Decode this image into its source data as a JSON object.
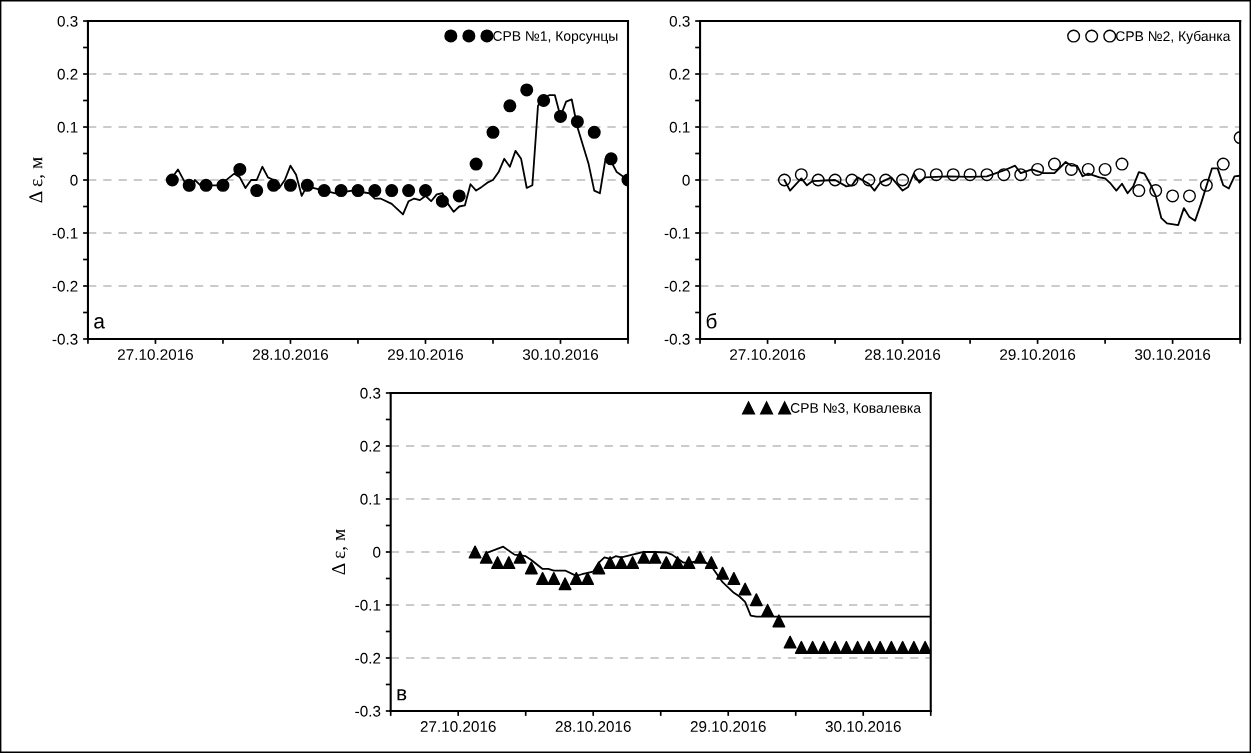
{
  "chart_data": [
    {
      "type": "scatter",
      "ylabel": "Δ ε, м",
      "annotations": [
        "а"
      ],
      "legend": "top right",
      "grid": "y",
      "marker": "circle",
      "xlim": [
        "2016-10-27T00:00",
        "2016-10-31T00:00"
      ],
      "xticks": [
        {
          "value": "2016-10-27T00:00",
          "label": null
        },
        {
          "value": "2016-10-27T12:00",
          "label": "27.10.2016"
        },
        {
          "value": "2016-10-28T00:00",
          "label": null
        },
        {
          "value": "2016-10-28T12:00",
          "label": "28.10.2016"
        },
        {
          "value": "2016-10-29T00:00",
          "label": null
        },
        {
          "value": "2016-10-29T12:00",
          "label": "29.10.2016"
        },
        {
          "value": "2016-10-30T00:00",
          "label": null
        },
        {
          "value": "2016-10-30T12:00",
          "label": "30.10.2016"
        },
        {
          "value": "2016-10-31T00:00",
          "label": null
        }
      ],
      "ylim": [
        -0.3,
        0.3
      ],
      "yticks": [
        -0.3,
        {
          "value": -0.25,
          "label": null
        },
        -0.2,
        {
          "value": -0.15,
          "label": null
        },
        -0.1,
        {
          "value": -0.05,
          "label": null
        },
        0,
        {
          "value": 0.05,
          "label": null
        },
        0.1,
        {
          "value": 0.15,
          "label": null
        },
        0.2,
        {
          "value": 0.25,
          "label": null
        },
        0.3
      ],
      "series": [
        {
          "type": "line",
          "color": "#000000",
          "marker": "none",
          "x": [
            "2016-10-27T15:00",
            "2016-10-27T16:00",
            "2016-10-27T18:00",
            "2016-10-27T19:00",
            "2016-10-27T20:00",
            "2016-10-27T23:00",
            "2016-10-28T00:00",
            "2016-10-28T02:00",
            "2016-10-28T03:00",
            "2016-10-28T04:00",
            "2016-10-28T05:00",
            "2016-10-28T06:00",
            "2016-10-28T07:00",
            "2016-10-28T08:00",
            "2016-10-28T09:00",
            "2016-10-28T10:00",
            "2016-10-28T11:00",
            "2016-10-28T12:00",
            "2016-10-28T13:00",
            "2016-10-28T14:00",
            "2016-10-28T15:00",
            "2016-10-28T16:00",
            "2016-10-28T18:00",
            "2016-10-28T20:00",
            "2016-10-28T23:00",
            "2016-10-29T02:00",
            "2016-10-29T03:00",
            "2016-10-29T04:00",
            "2016-10-29T06:00",
            "2016-10-29T08:00",
            "2016-10-29T09:00",
            "2016-10-29T10:00",
            "2016-10-29T11:00",
            "2016-10-29T12:00",
            "2016-10-29T13:00",
            "2016-10-29T14:00",
            "2016-10-29T15:00",
            "2016-10-29T16:00",
            "2016-10-29T17:00",
            "2016-10-29T18:00",
            "2016-10-29T19:00",
            "2016-10-29T20:00",
            "2016-10-29T21:00",
            "2016-10-29T22:00",
            "2016-10-29T23:00",
            "2016-10-30T00:00",
            "2016-10-30T01:00",
            "2016-10-30T02:00",
            "2016-10-30T03:00",
            "2016-10-30T04:00",
            "2016-10-30T05:00",
            "2016-10-30T06:00",
            "2016-10-30T07:00",
            "2016-10-30T08:00",
            "2016-10-30T09:00",
            "2016-10-30T10:00",
            "2016-10-30T11:00",
            "2016-10-30T12:00",
            "2016-10-30T13:00",
            "2016-10-30T14:00",
            "2016-10-30T15:00",
            "2016-10-30T17:00",
            "2016-10-30T18:00",
            "2016-10-30T19:00",
            "2016-10-30T20:00",
            "2016-10-30T21:00",
            "2016-10-30T22:00",
            "2016-10-31T00:00"
          ],
          "values": [
            0.005,
            0.02,
            -0.02,
            0,
            -0.01,
            -0.01,
            -0.005,
            0.012,
            0.005,
            -0.015,
            0,
            0,
            0.025,
            0.005,
            0,
            -0.015,
            0,
            0.027,
            0.01,
            -0.03,
            -0.01,
            -0.015,
            -0.02,
            -0.025,
            -0.02,
            -0.025,
            -0.035,
            -0.035,
            -0.045,
            -0.065,
            -0.04,
            -0.035,
            -0.038,
            -0.03,
            -0.04,
            -0.027,
            -0.025,
            -0.045,
            -0.06,
            -0.05,
            -0.048,
            -0.008,
            -0.02,
            -0.013,
            -0.005,
            0,
            0.015,
            0.04,
            0.025,
            0.055,
            0.04,
            -0.015,
            -0.01,
            0.14,
            0.155,
            0.16,
            0.16,
            0.12,
            0.148,
            0.152,
            0.1,
            0.03,
            -0.02,
            -0.025,
            0.04,
            0.035,
            0.015,
            0
          ]
        },
        {
          "name": "СРВ №1, Корсунцы",
          "color": "#000000",
          "x": [
            "2016-10-27T15:00",
            "2016-10-27T18:00",
            "2016-10-27T21:00",
            "2016-10-28T00:00",
            "2016-10-28T03:00",
            "2016-10-28T06:00",
            "2016-10-28T09:00",
            "2016-10-28T12:00",
            "2016-10-28T15:00",
            "2016-10-28T18:00",
            "2016-10-28T21:00",
            "2016-10-29T00:00",
            "2016-10-29T03:00",
            "2016-10-29T06:00",
            "2016-10-29T09:00",
            "2016-10-29T12:00",
            "2016-10-29T15:00",
            "2016-10-29T18:00",
            "2016-10-29T21:00",
            "2016-10-30T00:00",
            "2016-10-30T03:00",
            "2016-10-30T06:00",
            "2016-10-30T09:00",
            "2016-10-30T12:00",
            "2016-10-30T15:00",
            "2016-10-30T18:00",
            "2016-10-30T21:00",
            "2016-10-31T00:00"
          ],
          "values": [
            0,
            -0.01,
            -0.01,
            -0.01,
            0.02,
            -0.02,
            -0.01,
            -0.01,
            -0.01,
            -0.02,
            -0.02,
            -0.02,
            -0.02,
            -0.02,
            -0.02,
            -0.02,
            -0.04,
            -0.03,
            0.03,
            0.09,
            0.14,
            0.17,
            0.15,
            0.12,
            0.11,
            0.09,
            0.04,
            0
          ]
        }
      ]
    },
    {
      "type": "scatter",
      "annotations": [
        "б"
      ],
      "legend": "top right",
      "grid": "y",
      "marker": "open circle",
      "xlim": [
        "2016-10-27T00:00",
        "2016-10-31T00:00"
      ],
      "xticks": [
        {
          "value": "2016-10-27T00:00",
          "label": null
        },
        {
          "value": "2016-10-27T12:00",
          "label": "27.10.2016"
        },
        {
          "value": "2016-10-28T00:00",
          "label": null
        },
        {
          "value": "2016-10-28T12:00",
          "label": "28.10.2016"
        },
        {
          "value": "2016-10-29T00:00",
          "label": null
        },
        {
          "value": "2016-10-29T12:00",
          "label": "29.10.2016"
        },
        {
          "value": "2016-10-30T00:00",
          "label": null
        },
        {
          "value": "2016-10-30T12:00",
          "label": "30.10.2016"
        },
        {
          "value": "2016-10-31T00:00",
          "label": null
        }
      ],
      "ylim": [
        -0.3,
        0.3
      ],
      "yticks": [
        -0.3,
        {
          "value": -0.25,
          "label": null
        },
        -0.2,
        {
          "value": -0.15,
          "label": null
        },
        -0.1,
        {
          "value": -0.05,
          "label": null
        },
        0,
        {
          "value": 0.05,
          "label": null
        },
        0.1,
        {
          "value": 0.15,
          "label": null
        },
        0.2,
        {
          "value": 0.25,
          "label": null
        },
        0.3
      ],
      "series": [
        {
          "type": "line",
          "color": "#000000",
          "marker": "none",
          "x": [
            "2016-10-27T15:00",
            "2016-10-27T16:00",
            "2016-10-27T18:00",
            "2016-10-27T19:00",
            "2016-10-27T20:00",
            "2016-10-28T00:00",
            "2016-10-28T02:00",
            "2016-10-28T03:00",
            "2016-10-28T04:00",
            "2016-10-28T06:00",
            "2016-10-28T07:00",
            "2016-10-28T08:00",
            "2016-10-28T10:00",
            "2016-10-28T12:00",
            "2016-10-28T13:00",
            "2016-10-28T14:00",
            "2016-10-28T15:00",
            "2016-10-28T16:00",
            "2016-10-28T20:00",
            "2016-10-29T00:00",
            "2016-10-29T03:00",
            "2016-10-29T06:00",
            "2016-10-29T08:00",
            "2016-10-29T09:00",
            "2016-10-29T11:00",
            "2016-10-29T13:00",
            "2016-10-29T15:00",
            "2016-10-29T17:00",
            "2016-10-29T18:00",
            "2016-10-29T19:00",
            "2016-10-29T20:00",
            "2016-10-29T21:00",
            "2016-10-29T23:00",
            "2016-10-30T00:00",
            "2016-10-30T01:00",
            "2016-10-30T02:00",
            "2016-10-30T03:00",
            "2016-10-30T04:00",
            "2016-10-30T05:00",
            "2016-10-30T06:00",
            "2016-10-30T07:00",
            "2016-10-30T08:00",
            "2016-10-30T09:00",
            "2016-10-30T10:00",
            "2016-10-30T11:00",
            "2016-10-30T13:00",
            "2016-10-30T14:00",
            "2016-10-30T15:00",
            "2016-10-30T16:00",
            "2016-10-30T17:00",
            "2016-10-30T18:00",
            "2016-10-30T19:00",
            "2016-10-30T20:00",
            "2016-10-30T21:00",
            "2016-10-30T22:00",
            "2016-10-30T23:00",
            "2016-10-31T00:00"
          ],
          "values": [
            0,
            -0.02,
            0.003,
            -0.01,
            -0.002,
            0,
            -0.012,
            -0.01,
            0.005,
            -0.007,
            -0.02,
            -0.005,
            0.005,
            -0.02,
            -0.013,
            0.012,
            -0.005,
            0.005,
            0.007,
            0.006,
            0.007,
            0.018,
            0.027,
            0.013,
            0.02,
            0.013,
            0.013,
            0.034,
            0.027,
            0.027,
            0.007,
            0.012,
            0.005,
            0.003,
            -0.007,
            -0.02,
            -0.007,
            -0.025,
            -0.012,
            0.015,
            0.012,
            -0.007,
            -0.03,
            -0.072,
            -0.082,
            -0.085,
            -0.053,
            -0.07,
            -0.077,
            -0.046,
            -0.012,
            0.022,
            0.022,
            -0.01,
            -0.016,
            0.007,
            0.008
          ]
        },
        {
          "name": "СРВ №2, Кубанка",
          "color": "#000000",
          "x": [
            "2016-10-27T15:00",
            "2016-10-27T18:00",
            "2016-10-27T21:00",
            "2016-10-28T00:00",
            "2016-10-28T03:00",
            "2016-10-28T06:00",
            "2016-10-28T09:00",
            "2016-10-28T12:00",
            "2016-10-28T15:00",
            "2016-10-28T18:00",
            "2016-10-28T21:00",
            "2016-10-29T00:00",
            "2016-10-29T03:00",
            "2016-10-29T06:00",
            "2016-10-29T09:00",
            "2016-10-29T12:00",
            "2016-10-29T15:00",
            "2016-10-29T18:00",
            "2016-10-29T21:00",
            "2016-10-30T00:00",
            "2016-10-30T03:00",
            "2016-10-30T06:00",
            "2016-10-30T09:00",
            "2016-10-30T12:00",
            "2016-10-30T15:00",
            "2016-10-30T18:00",
            "2016-10-30T21:00",
            "2016-10-31T00:00"
          ],
          "values": [
            0,
            0.01,
            0,
            0,
            0,
            0,
            0,
            0,
            0.01,
            0.01,
            0.01,
            0.01,
            0.01,
            0.01,
            0.01,
            0.02,
            0.03,
            0.02,
            0.02,
            0.02,
            0.03,
            -0.02,
            -0.02,
            -0.03,
            -0.03,
            -0.01,
            0.03,
            0.08
          ]
        }
      ]
    },
    {
      "type": "scatter",
      "ylabel": "Δ ε, м",
      "annotations": [
        "в"
      ],
      "legend": "top right",
      "grid": "y",
      "marker": "triangle",
      "xlim": [
        "2016-10-27T00:00",
        "2016-10-31T00:00"
      ],
      "xticks": [
        {
          "value": "2016-10-27T00:00",
          "label": null
        },
        {
          "value": "2016-10-27T12:00",
          "label": "27.10.2016"
        },
        {
          "value": "2016-10-28T00:00",
          "label": null
        },
        {
          "value": "2016-10-28T12:00",
          "label": "28.10.2016"
        },
        {
          "value": "2016-10-29T00:00",
          "label": null
        },
        {
          "value": "2016-10-29T12:00",
          "label": "29.10.2016"
        },
        {
          "value": "2016-10-30T00:00",
          "label": null
        },
        {
          "value": "2016-10-30T12:00",
          "label": "30.10.2016"
        },
        {
          "value": "2016-10-31T00:00",
          "label": null
        }
      ],
      "ylim": [
        -0.3,
        0.3
      ],
      "yticks": [
        -0.3,
        {
          "value": -0.25,
          "label": null
        },
        -0.2,
        {
          "value": -0.15,
          "label": null
        },
        -0.1,
        {
          "value": -0.05,
          "label": null
        },
        0,
        {
          "value": 0.05,
          "label": null
        },
        0.1,
        {
          "value": 0.15,
          "label": null
        },
        0.2,
        {
          "value": 0.25,
          "label": null
        },
        0.3
      ],
      "series": [
        {
          "type": "line",
          "color": "#000000",
          "marker": "none",
          "x": [
            "2016-10-27T17:00",
            "2016-10-27T20:00",
            "2016-10-27T22:00",
            "2016-10-28T00:00",
            "2016-10-28T01:00",
            "2016-10-28T03:00",
            "2016-10-28T04:00",
            "2016-10-28T05:00",
            "2016-10-28T07:00",
            "2016-10-28T09:00",
            "2016-10-28T10:00",
            "2016-10-28T12:00",
            "2016-10-28T13:00",
            "2016-10-28T14:00",
            "2016-10-28T15:00",
            "2016-10-28T16:00",
            "2016-10-28T17:00",
            "2016-10-28T19:00",
            "2016-10-28T21:00",
            "2016-10-28T23:00",
            "2016-10-29T01:00",
            "2016-10-29T02:00",
            "2016-10-29T04:00",
            "2016-10-29T05:00",
            "2016-10-29T07:00",
            "2016-10-29T08:00",
            "2016-10-29T09:00",
            "2016-10-29T11:00",
            "2016-10-29T13:00",
            "2016-10-29T14:00",
            "2016-10-29T15:00",
            "2016-10-29T16:00",
            "2016-10-29T17:00",
            "2016-10-31T00:00"
          ],
          "values": [
            -0.002,
            0.01,
            -0.005,
            -0.008,
            -0.015,
            -0.032,
            -0.032,
            -0.035,
            -0.035,
            -0.045,
            -0.042,
            -0.037,
            -0.02,
            -0.01,
            -0.013,
            -0.008,
            -0.01,
            -0.005,
            0,
            0,
            -0.001,
            -0.005,
            -0.02,
            -0.02,
            -0.017,
            -0.02,
            -0.027,
            -0.057,
            -0.077,
            -0.084,
            -0.094,
            -0.12,
            -0.122,
            -0.122
          ]
        },
        {
          "name": "СРВ №3, Ковалевка",
          "color": "#000000",
          "x": [
            "2016-10-27T15:00",
            "2016-10-27T17:00",
            "2016-10-27T19:00",
            "2016-10-27T21:00",
            "2016-10-27T23:00",
            "2016-10-28T01:00",
            "2016-10-28T03:00",
            "2016-10-28T05:00",
            "2016-10-28T07:00",
            "2016-10-28T09:00",
            "2016-10-28T11:00",
            "2016-10-28T13:00",
            "2016-10-28T15:00",
            "2016-10-28T17:00",
            "2016-10-28T19:00",
            "2016-10-28T21:00",
            "2016-10-28T23:00",
            "2016-10-29T01:00",
            "2016-10-29T03:00",
            "2016-10-29T05:00",
            "2016-10-29T07:00",
            "2016-10-29T09:00",
            "2016-10-29T11:00",
            "2016-10-29T13:00",
            "2016-10-29T15:00",
            "2016-10-29T17:00",
            "2016-10-29T19:00",
            "2016-10-29T21:00",
            "2016-10-29T23:00",
            "2016-10-30T01:00",
            "2016-10-30T03:00",
            "2016-10-30T05:00",
            "2016-10-30T07:00",
            "2016-10-30T09:00",
            "2016-10-30T11:00",
            "2016-10-30T13:00",
            "2016-10-30T15:00",
            "2016-10-30T17:00",
            "2016-10-30T19:00",
            "2016-10-30T21:00",
            "2016-10-30T23:00"
          ],
          "values": [
            0,
            -0.01,
            -0.02,
            -0.02,
            -0.01,
            -0.03,
            -0.05,
            -0.05,
            -0.06,
            -0.05,
            -0.05,
            -0.03,
            -0.02,
            -0.02,
            -0.02,
            -0.01,
            -0.01,
            -0.02,
            -0.02,
            -0.02,
            -0.01,
            -0.02,
            -0.04,
            -0.05,
            -0.07,
            -0.09,
            -0.11,
            -0.13,
            -0.17,
            -0.18,
            -0.18,
            -0.18,
            -0.18,
            -0.18,
            -0.18,
            -0.18,
            -0.18,
            -0.18,
            -0.18,
            -0.18,
            -0.18
          ]
        }
      ]
    }
  ]
}
